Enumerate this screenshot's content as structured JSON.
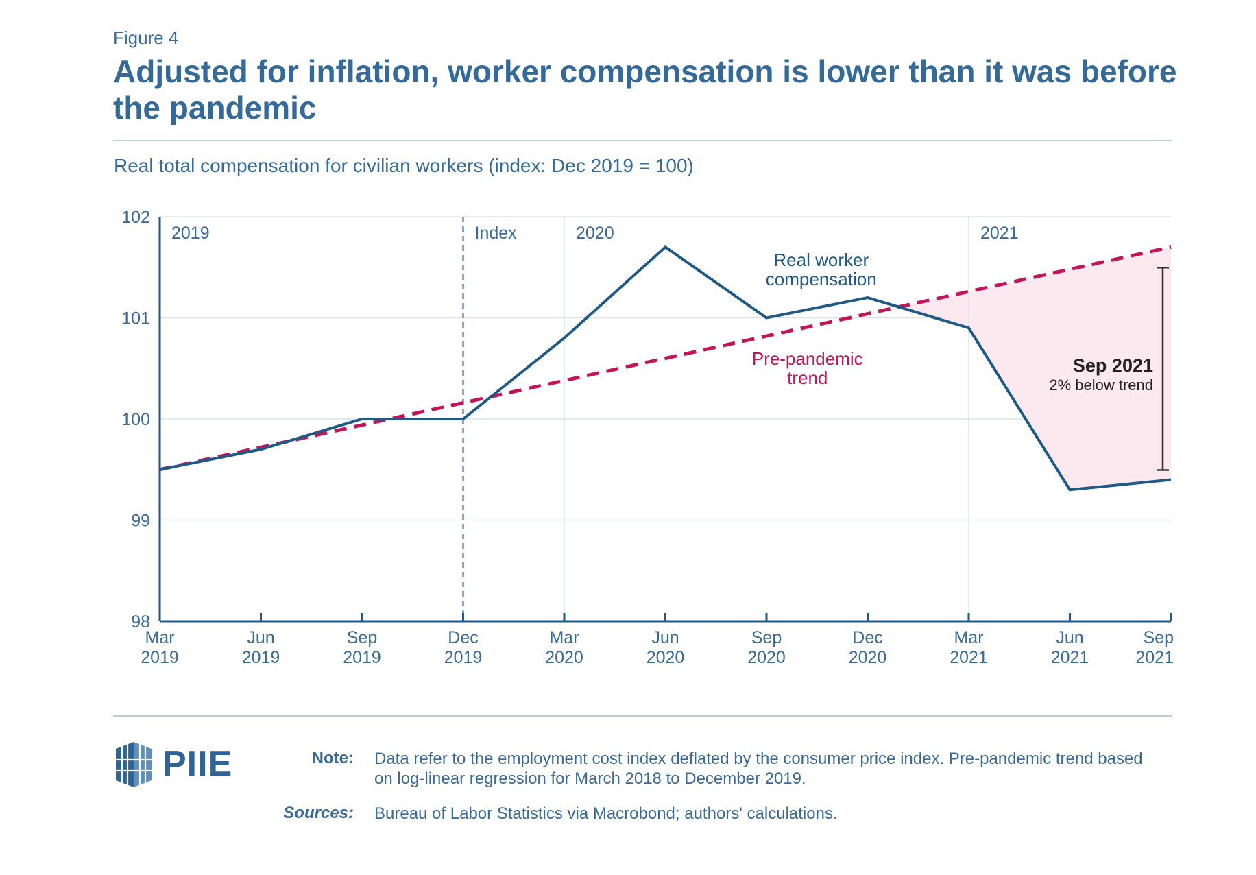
{
  "figure_label": "Figure 4",
  "title": "Adjusted for inflation, worker compensation is lower than it was before the pandemic",
  "subtitle": "Real total compensation for civilian workers (index: Dec 2019 = 100)",
  "colors": {
    "actual": "#1f5a86",
    "trend": "#c4145a",
    "gap_fill": "#fbe9ef",
    "grid": "#d8e3ee",
    "text": "#3a6a96"
  },
  "chart_data": {
    "type": "line",
    "x": [
      "Mar 2019",
      "Jun 2019",
      "Sep 2019",
      "Dec 2019",
      "Mar 2020",
      "Jun 2020",
      "Sep 2020",
      "Dec 2020",
      "Mar 2021",
      "Jun 2021",
      "Sep 2021"
    ],
    "x_tick_labels": [
      [
        "Mar",
        "2019"
      ],
      [
        "Jun",
        "2019"
      ],
      [
        "Sep",
        "2019"
      ],
      [
        "Dec",
        "2019"
      ],
      [
        "Mar",
        "2020"
      ],
      [
        "Jun",
        "2020"
      ],
      [
        "Sep",
        "2020"
      ],
      [
        "Dec",
        "2020"
      ],
      [
        "Mar",
        "2021"
      ],
      [
        "Jun",
        "2021"
      ],
      [
        "Sep",
        "2021"
      ]
    ],
    "series": [
      {
        "name": "Real worker compensation",
        "label_lines": [
          "Real worker",
          "compensation"
        ],
        "style": "solid",
        "values": [
          99.5,
          99.7,
          100.0,
          100.0,
          100.8,
          101.7,
          101.0,
          101.2,
          100.9,
          99.3,
          99.4
        ]
      },
      {
        "name": "Pre-pandemic trend",
        "label_lines": [
          "Pre-pandemic",
          "trend"
        ],
        "style": "dashed",
        "values": [
          99.5,
          99.72,
          99.94,
          100.16,
          100.38,
          100.6,
          100.82,
          101.04,
          101.26,
          101.48,
          101.7
        ]
      }
    ],
    "ylim": [
      98,
      102
    ],
    "yticks": [
      98,
      99,
      100,
      101,
      102
    ],
    "year_markers": [
      {
        "label": "2019",
        "x": "Mar 2019"
      },
      {
        "label": "Index",
        "x": "Dec 2019",
        "dashed": true
      },
      {
        "label": "2020",
        "x": "Mar 2020"
      },
      {
        "label": "2021",
        "x": "Mar 2021"
      }
    ],
    "gap_annotation": {
      "title": "Sep 2021",
      "text": "2% below trend"
    },
    "grid": true
  },
  "note_label": "Note:",
  "note_text": "Data refer to the employment cost index deflated by the consumer price index. Pre-pandemic trend based on log-linear regression for March 2018 to December 2019.",
  "sources_label": "Sources:",
  "sources_text": "Bureau of Labor Statistics via Macrobond; authors' calculations.",
  "logo_text": "PIIE"
}
